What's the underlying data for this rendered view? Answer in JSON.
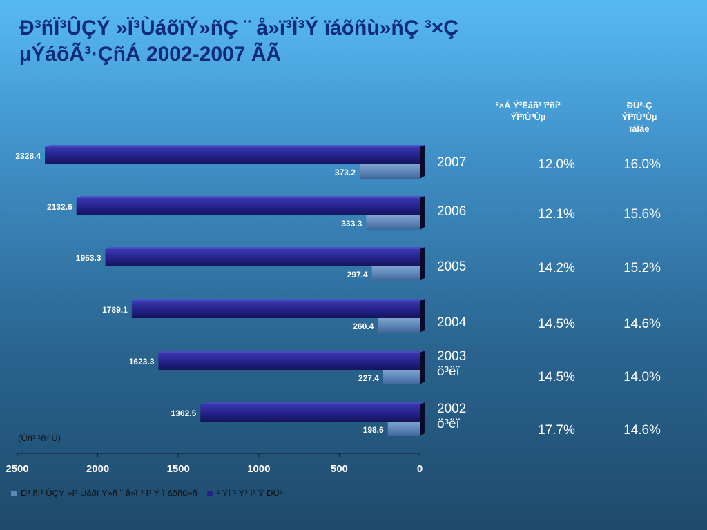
{
  "title": "Ð³ñÏ³ÛÇÝ »Ï³ÙáõïÝ»ñÇ ¨ å»ï³Ï³Ý ïáõñù»ñÇ ³×Ç\nµÝáõÃ³·ÇñÁ 2002-2007 ÃÃ",
  "table_headers": {
    "col1": "²×Á Ý³Ëáñ¹ ï³ñí³\nÝÏ³ïÙ³Ùµ",
    "col2": "ÐÜ²-Ç\nÝÏ³ïÙ³Ùµ\nïáÏáë"
  },
  "rows": [
    {
      "year_label": "2007",
      "pct1": "12.0%",
      "pct2": "16.0%"
    },
    {
      "year_label": "2006",
      "pct1": "12.1%",
      "pct2": "15.6%"
    },
    {
      "year_label": "2005",
      "pct1": "14.2%",
      "pct2": "15.2%"
    },
    {
      "year_label": "2004",
      "pct1": "14.5%",
      "pct2": "14.6%"
    },
    {
      "year_label": "2003\nö³ëï",
      "pct1": "14.5%",
      "pct2": "14.0%"
    },
    {
      "year_label": "2002\nö³ëï",
      "pct1": "17.7%",
      "pct2": "14.6%"
    }
  ],
  "unit_note": "(Ùñ¹ ¹ñ³ Ù)",
  "legend": {
    "series1": "Ð³ ñÏ³ ÛÇÝ »Ï³ Ùáõï Ý»ñ ¨ å»ï ³ Ï³ Ý ï áõñù»ñ",
    "series2": "² Ýí ³ Ý³ Ï³ Ý ÐÜ²"
  },
  "colors": {
    "title": "#0f2a79",
    "dark_bar": "#24238a",
    "light_bar": "#5e86b8",
    "text_white": "#ffffff"
  },
  "chart_data": {
    "type": "bar",
    "orientation": "horizontal",
    "categories": [
      "2007",
      "2006",
      "2005",
      "2004",
      "2003",
      "2002"
    ],
    "series": [
      {
        "name": "² Ýí ³ Ý³ Ï³ Ý ÐÜ²",
        "values": [
          2328.4,
          2132.6,
          1953.3,
          1789.1,
          1623.3,
          1362.5
        ]
      },
      {
        "name": "Ð³ ñÏ³ ÛÇÝ »Ï³ Ùáõï Ý»ñ ¨ å»ï ³ Ï³ Ý ï áõñù»ñ",
        "values": [
          373.2,
          333.3,
          297.4,
          260.4,
          227.4,
          198.6
        ]
      }
    ],
    "xlim": [
      0,
      2500
    ],
    "x_reversed": true,
    "ticks": [
      "2500",
      "2000",
      "1500",
      "1000",
      "500",
      "0"
    ],
    "tick_values": [
      2500,
      2000,
      1500,
      1000,
      500,
      0
    ],
    "grid": false,
    "legend_position": "bottom"
  }
}
